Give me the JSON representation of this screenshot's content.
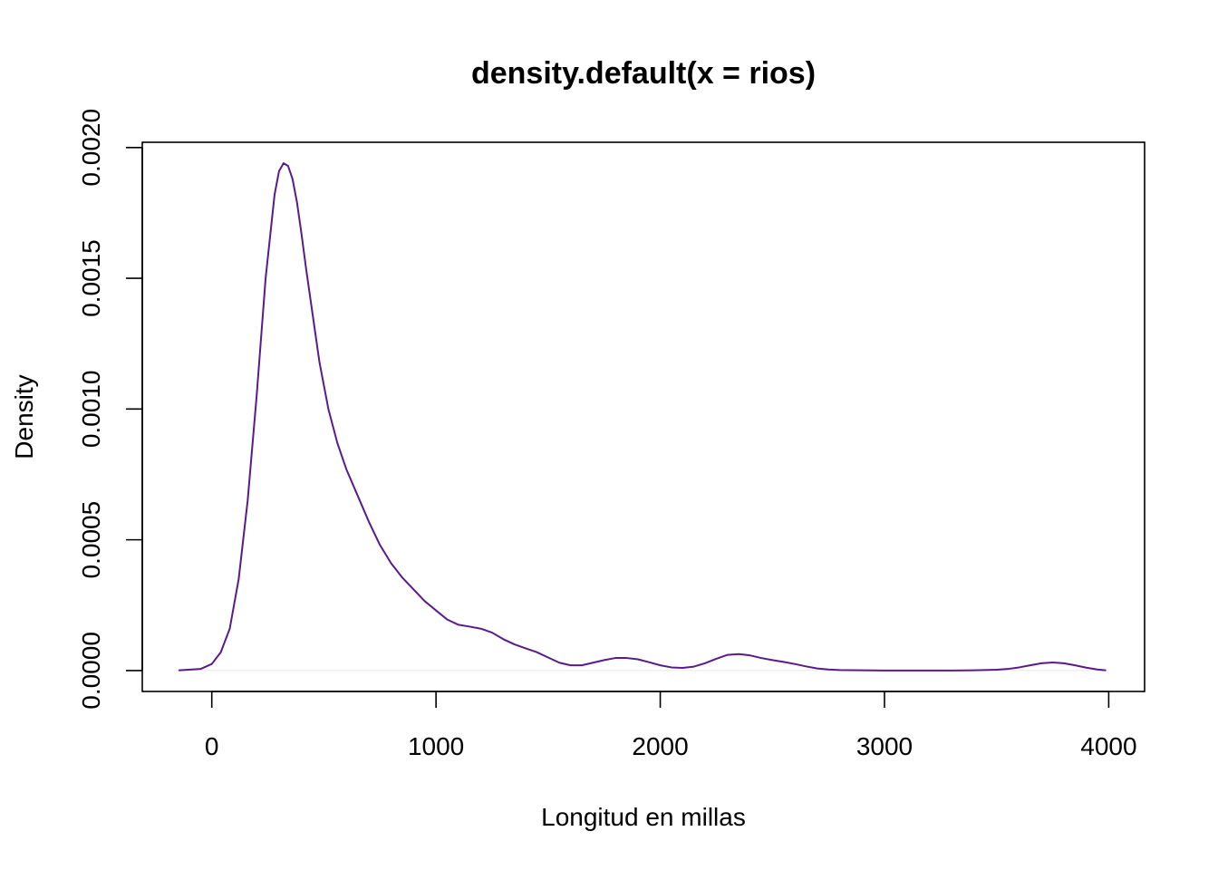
{
  "chart_data": {
    "type": "line",
    "title": "density.default(x = rios)",
    "xlabel": "Longitud en millas",
    "ylabel": "Density",
    "xlim": [
      -310,
      4160
    ],
    "ylim": [
      -8e-05,
      0.00202
    ],
    "x_ticks": [
      0,
      1000,
      2000,
      3000,
      4000
    ],
    "x_tick_labels": [
      "0",
      "1000",
      "2000",
      "3000",
      "4000"
    ],
    "y_ticks": [
      0.0,
      0.0005,
      0.001,
      0.0015,
      0.002
    ],
    "y_tick_labels": [
      "0.0000",
      "0.0005",
      "0.0010",
      "0.0015",
      "0.0020"
    ],
    "grid": false,
    "legend": "none",
    "zero_line": true,
    "colors": {
      "line": "#5b1a8b",
      "zero_line": "#e6e6e6"
    },
    "series": [
      {
        "name": "density",
        "x": [
          -145,
          -50,
          0,
          40,
          80,
          120,
          160,
          200,
          240,
          280,
          300,
          320,
          340,
          360,
          380,
          400,
          420,
          450,
          480,
          520,
          560,
          600,
          650,
          700,
          750,
          800,
          850,
          900,
          950,
          1000,
          1050,
          1100,
          1150,
          1200,
          1250,
          1300,
          1350,
          1400,
          1450,
          1500,
          1550,
          1600,
          1650,
          1700,
          1750,
          1800,
          1850,
          1900,
          1950,
          2000,
          2050,
          2100,
          2150,
          2200,
          2250,
          2300,
          2350,
          2400,
          2450,
          2500,
          2550,
          2600,
          2650,
          2700,
          2750,
          2800,
          2900,
          3000,
          3100,
          3200,
          3300,
          3400,
          3500,
          3550,
          3600,
          3650,
          3700,
          3750,
          3800,
          3850,
          3900,
          3950,
          3985
        ],
        "y": [
          1e-06,
          6e-06,
          2.5e-05,
          7e-05,
          0.00016,
          0.00035,
          0.00065,
          0.00105,
          0.0015,
          0.00182,
          0.00191,
          0.00194,
          0.00193,
          0.00188,
          0.00179,
          0.00167,
          0.00154,
          0.00136,
          0.00118,
          0.001,
          0.00087,
          0.00077,
          0.00067,
          0.00057,
          0.00048,
          0.00041,
          0.000355,
          0.00031,
          0.000265,
          0.00023,
          0.000195,
          0.000175,
          0.000168,
          0.00016,
          0.000145,
          0.00012,
          0.0001,
          8.5e-05,
          7e-05,
          5e-05,
          3e-05,
          2e-05,
          2e-05,
          3e-05,
          4e-05,
          4.8e-05,
          4.8e-05,
          4.3e-05,
          3.2e-05,
          2e-05,
          1.2e-05,
          1e-05,
          1.5e-05,
          2.8e-05,
          4.5e-05,
          6e-05,
          6.3e-05,
          5.8e-05,
          4.8e-05,
          4e-05,
          3.3e-05,
          2.5e-05,
          1.6e-05,
          8e-06,
          4e-06,
          2e-06,
          8e-07,
          3e-07,
          2e-07,
          2e-07,
          3e-07,
          8e-07,
          3e-06,
          6e-06,
          1.2e-05,
          2e-05,
          2.8e-05,
          3.1e-05,
          2.8e-05,
          2e-05,
          1.1e-05,
          4e-06,
          1e-06
        ]
      }
    ]
  }
}
